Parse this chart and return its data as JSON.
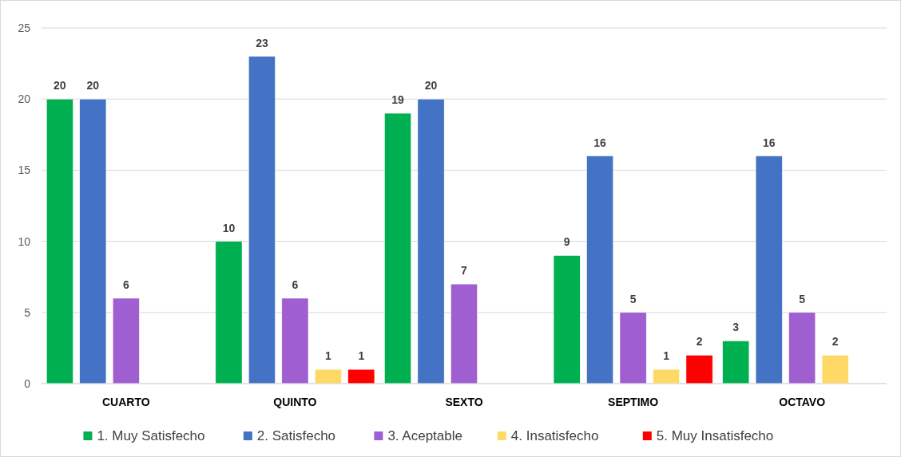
{
  "chart_data": {
    "type": "bar",
    "categories": [
      "CUARTO",
      "QUINTO",
      "SEXTO",
      "SEPTIMO",
      "OCTAVO"
    ],
    "series": [
      {
        "name": "1. Muy Satisfecho",
        "color": "#00b050",
        "values": [
          20,
          10,
          19,
          9,
          3
        ]
      },
      {
        "name": "2. Satisfecho",
        "color": "#4472c4",
        "values": [
          20,
          23,
          20,
          16,
          16
        ]
      },
      {
        "name": "3. Aceptable",
        "color": "#a05fd0",
        "values": [
          6,
          6,
          7,
          5,
          5
        ]
      },
      {
        "name": "4. Insatisfecho",
        "color": "#ffd966",
        "values": [
          null,
          1,
          null,
          1,
          2
        ]
      },
      {
        "name": "5. Muy Insatisfecho",
        "color": "#ff0000",
        "values": [
          null,
          1,
          null,
          2,
          null
        ]
      }
    ],
    "ylim": [
      0,
      25
    ],
    "yticks": [
      0,
      5,
      10,
      15,
      20,
      25
    ],
    "grid": "y",
    "legend": "bottom",
    "data_labels": true
  }
}
